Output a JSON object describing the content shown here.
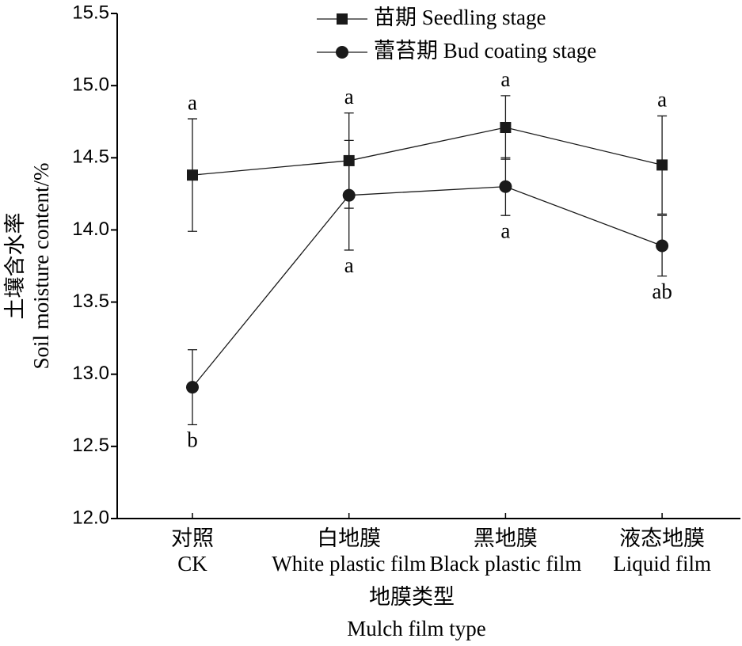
{
  "chart_data": {
    "type": "line",
    "categories": [
      "对照",
      "白地膜",
      "黑地膜",
      "液态地膜"
    ],
    "category_subtitles": [
      "CK",
      "White plastic film",
      "Black plastic film",
      "Liquid film"
    ],
    "xlabel": "地膜类型",
    "xlabel_en": "Mulch film type",
    "ylabel": "土壤含水率",
    "ylabel_en": "Soil moisture content/%",
    "ylim": [
      12.0,
      15.5
    ],
    "yticks": [
      {
        "value": 12.0,
        "label": "12.0"
      },
      12.5,
      {
        "value": 13.0,
        "label": "13.0"
      },
      13.5,
      {
        "value": 14.0,
        "label": "14.0"
      },
      14.5,
      {
        "value": 15.0,
        "label": "15.0"
      },
      15.5
    ],
    "legend_position": "top",
    "series": [
      {
        "name": "苗期 Seedling stage",
        "color": "#1a1a1a",
        "marker": "square",
        "values": [
          14.38,
          14.48,
          14.71,
          14.45
        ],
        "errors": [
          0.39,
          0.33,
          0.22,
          0.34
        ],
        "significance": [
          "a",
          "a",
          "a",
          "a"
        ],
        "significance_side": "above"
      },
      {
        "name": "蕾苔期 Bud coating stage",
        "color": "#1a1a1a",
        "marker": "circle",
        "values": [
          12.91,
          14.24,
          14.3,
          13.89
        ],
        "errors": [
          0.26,
          0.38,
          0.2,
          0.21
        ],
        "significance": [
          "b",
          "a",
          "a",
          "ab"
        ],
        "significance_side": "below"
      }
    ]
  }
}
